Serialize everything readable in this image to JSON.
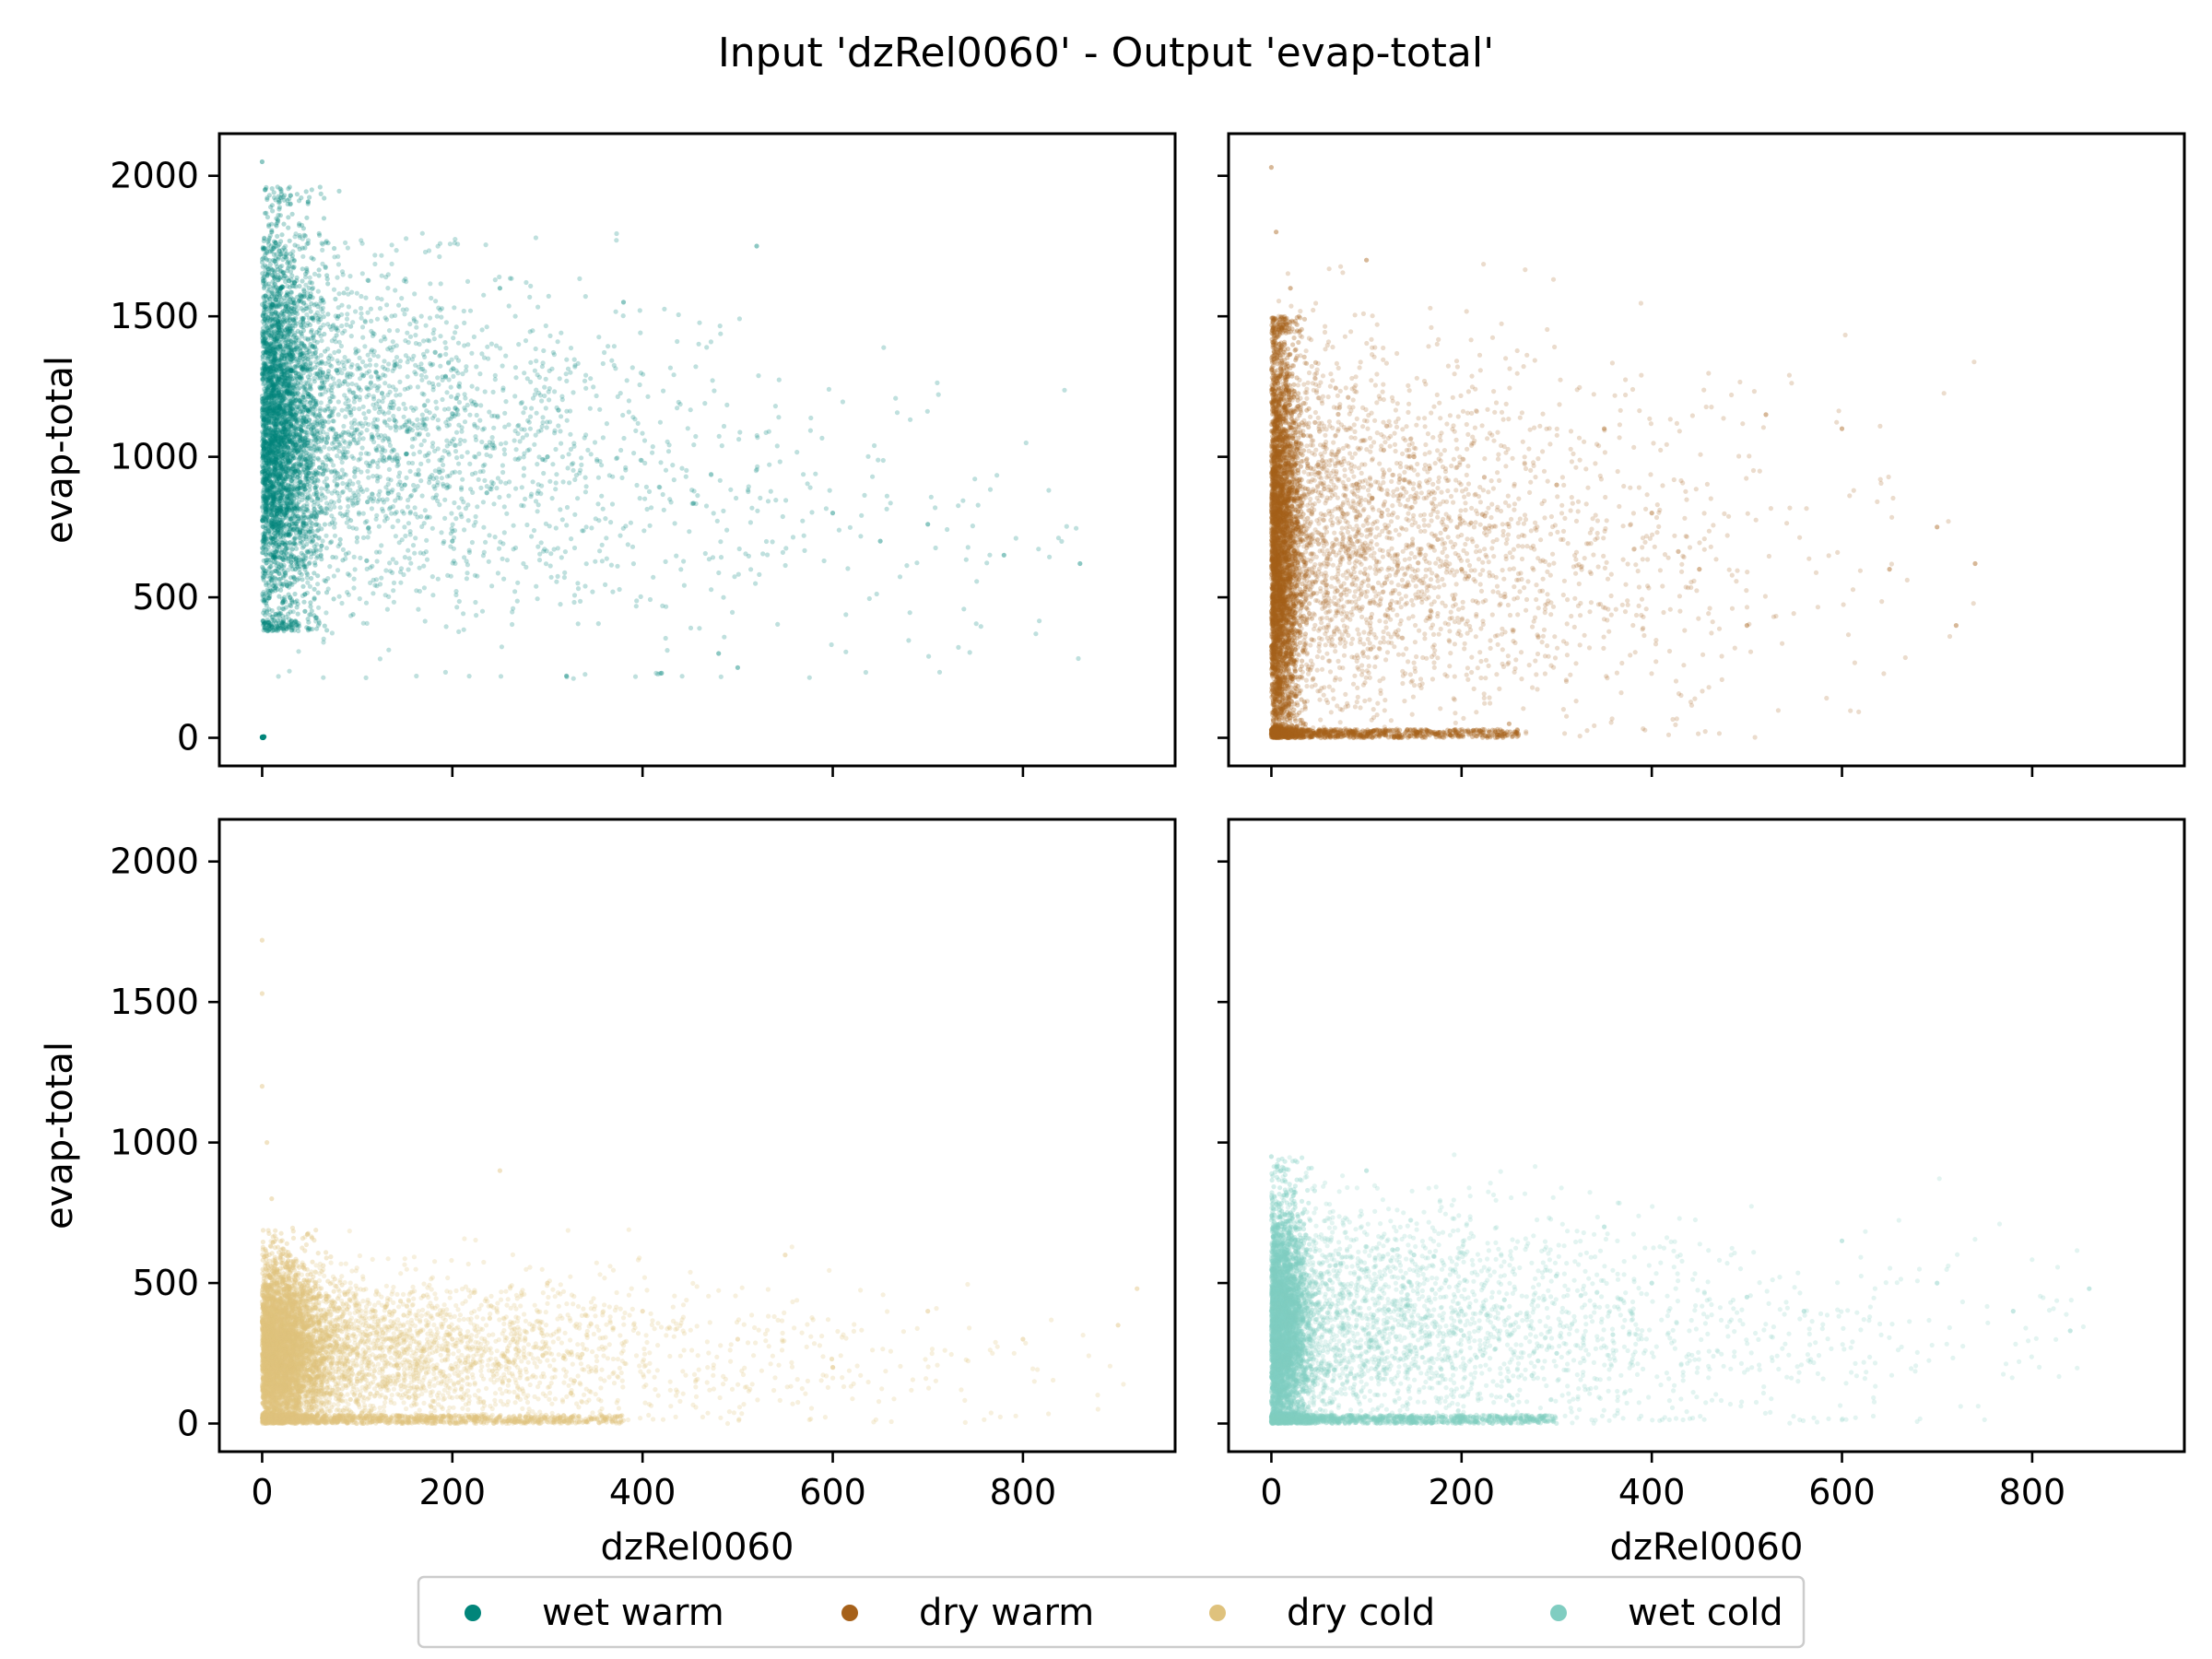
{
  "chart_data": {
    "type": "scatter",
    "title": "Input 'dzRel0060' - Output 'evap-total'",
    "xlabel": "dzRel0060",
    "ylabel": "evap-total",
    "xlim": [
      -45,
      960
    ],
    "ylim": [
      -100,
      2150
    ],
    "xticks": [
      0,
      200,
      400,
      600,
      800
    ],
    "yticks": [
      0,
      500,
      1000,
      1500,
      2000
    ],
    "sharex": true,
    "sharey": true,
    "legend": {
      "placement": "bottom-center",
      "entries": [
        "wet warm",
        "dry warm",
        "dry cold",
        "wet cold"
      ]
    },
    "panels": [
      {
        "series": "wet warm",
        "color": "#01857a",
        "x_max": 860,
        "dense_core": {
          "x_range": [
            0,
            60
          ],
          "y_range": [
            400,
            1950
          ]
        },
        "sample_points": [
          [
            0,
            0
          ],
          [
            0,
            2050
          ],
          [
            3,
            1950
          ],
          [
            10,
            1800
          ],
          [
            20,
            1600
          ],
          [
            30,
            1400
          ],
          [
            40,
            1200
          ],
          [
            15,
            1000
          ],
          [
            25,
            800
          ],
          [
            35,
            600
          ],
          [
            45,
            450
          ],
          [
            80,
            1500
          ],
          [
            120,
            1300
          ],
          [
            150,
            900
          ],
          [
            200,
            700
          ],
          [
            250,
            1600
          ],
          [
            300,
            1000
          ],
          [
            320,
            220
          ],
          [
            380,
            1550
          ],
          [
            420,
            230
          ],
          [
            480,
            300
          ],
          [
            500,
            250
          ],
          [
            520,
            1750
          ],
          [
            600,
            800
          ],
          [
            650,
            700
          ],
          [
            700,
            760
          ],
          [
            780,
            650
          ],
          [
            860,
            620
          ]
        ]
      },
      {
        "series": "dry warm",
        "color": "#a6611a",
        "x_max": 740,
        "dense_core": {
          "x_range": [
            0,
            40
          ],
          "y_range": [
            0,
            1500
          ]
        },
        "sample_points": [
          [
            0,
            2030
          ],
          [
            5,
            1800
          ],
          [
            20,
            1600
          ],
          [
            10,
            1200
          ],
          [
            15,
            800
          ],
          [
            30,
            400
          ],
          [
            25,
            0
          ],
          [
            100,
            1700
          ],
          [
            150,
            1000
          ],
          [
            200,
            600
          ],
          [
            250,
            50
          ],
          [
            300,
            900
          ],
          [
            350,
            1100
          ],
          [
            400,
            800
          ],
          [
            450,
            600
          ],
          [
            500,
            400
          ],
          [
            520,
            1150
          ],
          [
            600,
            1100
          ],
          [
            650,
            600
          ],
          [
            700,
            750
          ],
          [
            720,
            400
          ],
          [
            740,
            620
          ]
        ]
      },
      {
        "series": "dry cold",
        "color": "#dfc27d",
        "x_max": 920,
        "dense_core": {
          "x_range": [
            0,
            80
          ],
          "y_range": [
            0,
            650
          ]
        },
        "sample_points": [
          [
            0,
            1720
          ],
          [
            0,
            1530
          ],
          [
            0,
            1200
          ],
          [
            5,
            1000
          ],
          [
            10,
            800
          ],
          [
            20,
            600
          ],
          [
            40,
            400
          ],
          [
            60,
            200
          ],
          [
            100,
            150
          ],
          [
            200,
            300
          ],
          [
            250,
            900
          ],
          [
            300,
            500
          ],
          [
            400,
            400
          ],
          [
            500,
            300
          ],
          [
            550,
            600
          ],
          [
            600,
            200
          ],
          [
            700,
            400
          ],
          [
            800,
            300
          ],
          [
            900,
            350
          ],
          [
            920,
            480
          ]
        ]
      },
      {
        "series": "wet cold",
        "color": "#80cdc1",
        "x_max": 860,
        "dense_core": {
          "x_range": [
            0,
            60
          ],
          "y_range": [
            0,
            900
          ]
        },
        "sample_points": [
          [
            0,
            950
          ],
          [
            10,
            900
          ],
          [
            20,
            750
          ],
          [
            30,
            500
          ],
          [
            40,
            300
          ],
          [
            50,
            20
          ],
          [
            100,
            900
          ],
          [
            150,
            600
          ],
          [
            200,
            400
          ],
          [
            250,
            100
          ],
          [
            300,
            250
          ],
          [
            350,
            700
          ],
          [
            400,
            500
          ],
          [
            500,
            450
          ],
          [
            560,
            400
          ],
          [
            600,
            650
          ],
          [
            700,
            500
          ],
          [
            780,
            400
          ],
          [
            840,
            330
          ],
          [
            860,
            480
          ]
        ]
      }
    ]
  }
}
